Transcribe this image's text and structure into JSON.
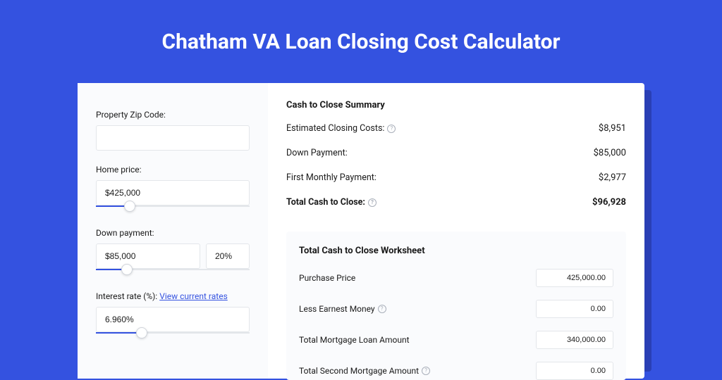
{
  "page": {
    "title": "Chatham VA Loan Closing Cost Calculator",
    "background_color": "#3452e0",
    "shadow_color": "#2a3fb5",
    "card_color": "#ffffff",
    "panel_color": "#fafbfd"
  },
  "inputs": {
    "zip": {
      "label": "Property Zip Code:",
      "value": ""
    },
    "home_price": {
      "label": "Home price:",
      "value": "$425,000",
      "slider_pct": 22
    },
    "down_payment": {
      "label": "Down payment:",
      "amount": "$85,000",
      "percent": "20%",
      "slider_pct": 20
    },
    "interest_rate": {
      "label": "Interest rate (%): ",
      "link": "View current rates",
      "value": "6.960%",
      "slider_pct": 30
    }
  },
  "summary": {
    "title": "Cash to Close Summary",
    "rows": [
      {
        "label": "Estimated Closing Costs:",
        "value": "$8,951",
        "help": true,
        "bold": false
      },
      {
        "label": "Down Payment:",
        "value": "$85,000",
        "help": false,
        "bold": false
      },
      {
        "label": "First Monthly Payment:",
        "value": "$2,977",
        "help": false,
        "bold": false
      },
      {
        "label": "Total Cash to Close:",
        "value": "$96,928",
        "help": true,
        "bold": true
      }
    ]
  },
  "worksheet": {
    "title": "Total Cash to Close Worksheet",
    "rows": [
      {
        "label": "Purchase Price",
        "value": "425,000.00",
        "help": false
      },
      {
        "label": "Less Earnest Money",
        "value": "0.00",
        "help": true
      },
      {
        "label": "Total Mortgage Loan Amount",
        "value": "340,000.00",
        "help": false
      },
      {
        "label": "Total Second Mortgage Amount",
        "value": "0.00",
        "help": true
      }
    ]
  }
}
